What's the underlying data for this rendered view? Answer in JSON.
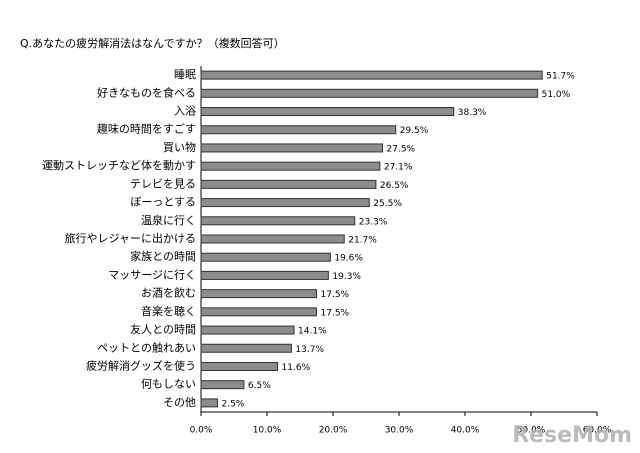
{
  "chart_data": {
    "type": "bar",
    "orientation": "horizontal",
    "title": "Q.あなたの疲労解消法はなんですか？（複数回答可）",
    "categories": [
      "睡眠",
      "好きなものを食べる",
      "入浴",
      "趣味の時間をすごす",
      "買い物",
      "運動ストレッチなど体を動かす",
      "テレビを見る",
      "ぼーっとする",
      "温泉に行く",
      "旅行やレジャーに出かける",
      "家族との時間",
      "マッサージに行く",
      "お酒を飲む",
      "音楽を聴く",
      "友人との時間",
      "ペットとの触れあい",
      "疲労解消グッズを使う",
      "何もしない",
      "その他"
    ],
    "values": [
      51.7,
      51.0,
      38.3,
      29.5,
      27.5,
      27.1,
      26.5,
      25.5,
      23.3,
      21.7,
      19.6,
      19.3,
      17.5,
      17.5,
      14.1,
      13.7,
      11.6,
      6.5,
      2.5
    ],
    "value_labels": [
      "51.7%",
      "51.0%",
      "38.3%",
      "29.5%",
      "27.5%",
      "27.1%",
      "26.5%",
      "25.5%",
      "23.3%",
      "21.7%",
      "19.6%",
      "19.3%",
      "17.5%",
      "17.5%",
      "14.1%",
      "13.7%",
      "11.6%",
      "6.5%",
      "2.5%"
    ],
    "color": "#8c8c8c",
    "xlim": [
      0,
      60
    ],
    "xticks": [
      {
        "value": 0,
        "label": "0.0%"
      },
      {
        "value": 10,
        "label": "10.0%"
      },
      {
        "value": 20,
        "label": "20.0%"
      },
      {
        "value": 30,
        "label": "30.0%"
      },
      {
        "value": 40,
        "label": "40.0%"
      },
      {
        "value": 50,
        "label": "50.0%"
      },
      {
        "value": 60,
        "label": "60.0%"
      }
    ],
    "grid": false,
    "watermark": "ReseMom"
  }
}
